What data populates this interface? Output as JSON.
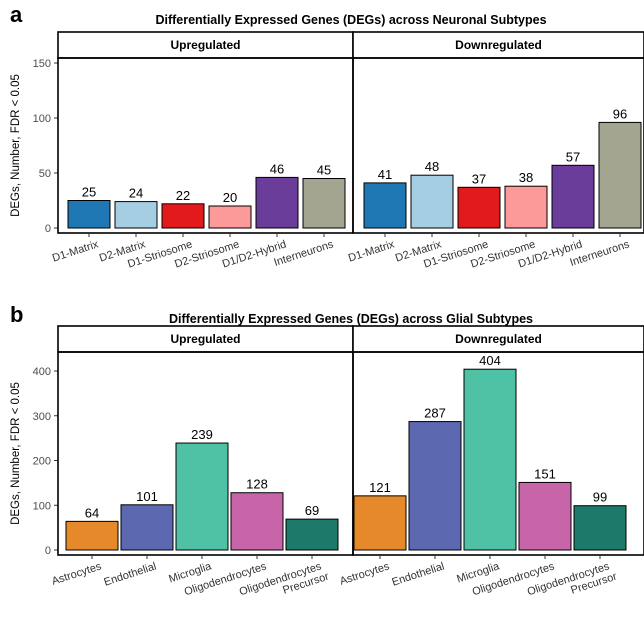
{
  "chart_data": [
    {
      "type": "bar",
      "panel_letter": "a",
      "title": "Differentially Expressed Genes (DEGs) across Neuronal Subtypes",
      "ylabel": "DEGs, Number, FDR < 0.05",
      "xlabel": "",
      "ylim": [
        0,
        150
      ],
      "yticks": [
        0,
        50,
        100,
        150
      ],
      "grid": false,
      "legend": "none",
      "facets": [
        {
          "name": "Upregulated",
          "categories": [
            "D1-Matrix",
            "D2-Matrix",
            "D1-Striosome",
            "D2-Striosome",
            "D1/D2-Hybrid",
            "Interneurons"
          ],
          "values": [
            25,
            24,
            22,
            20,
            46,
            45
          ]
        },
        {
          "name": "Downregulated",
          "categories": [
            "D1-Matrix",
            "D2-Matrix",
            "D1-Striosome",
            "D2-Striosome",
            "D1/D2-Hybrid",
            "Interneurons"
          ],
          "values": [
            41,
            48,
            37,
            38,
            57,
            96
          ]
        }
      ],
      "colors": [
        "#1f78b4",
        "#a6cee3",
        "#e31a1c",
        "#fb9a99",
        "#6a3d9a",
        "#a3a590"
      ]
    },
    {
      "type": "bar",
      "panel_letter": "b",
      "title": "Differentially Expressed Genes (DEGs) across Glial Subtypes",
      "ylabel": "DEGs, Number, FDR < 0.05",
      "xlabel": "",
      "ylim": [
        0,
        420
      ],
      "yticks": [
        0,
        100,
        200,
        300,
        400
      ],
      "grid": false,
      "legend": "none",
      "facets": [
        {
          "name": "Upregulated",
          "categories": [
            "Astrocytes",
            "Endothelial",
            "Microglia",
            "Oligodendrocytes",
            "Oligodendrocytes\nPrecursor"
          ],
          "values": [
            64,
            101,
            239,
            128,
            69
          ]
        },
        {
          "name": "Downregulated",
          "categories": [
            "Astrocytes",
            "Endothelial",
            "Microglia",
            "Oligodendrocytes",
            "Oligodendrocytes\nPrecursor"
          ],
          "values": [
            121,
            287,
            404,
            151,
            99
          ]
        }
      ],
      "colors": [
        "#e6892a",
        "#5c68b0",
        "#4fc2a5",
        "#c864a8",
        "#1d7a6b"
      ]
    }
  ]
}
